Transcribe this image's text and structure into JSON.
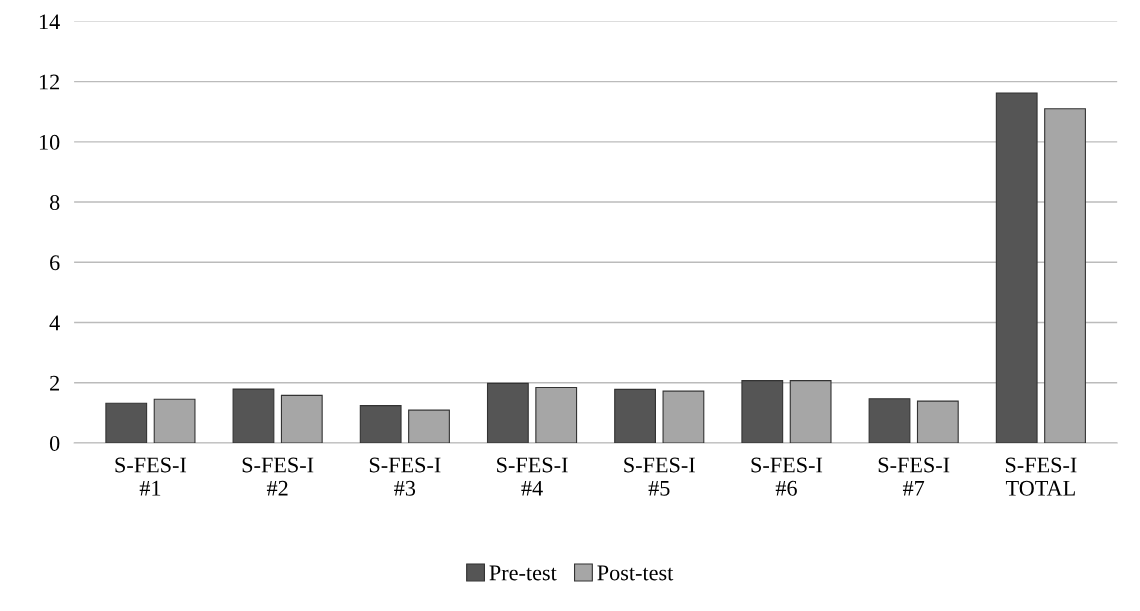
{
  "chart_data": {
    "type": "bar",
    "categories": [
      "S-FES-I\n#1",
      "S-FES-I\n#2",
      "S-FES-I\n#3",
      "S-FES-I\n#4",
      "S-FES-I\n#5",
      "S-FES-I\n#6",
      "S-FES-I\n#7",
      "S-FES-I\nTOTAL"
    ],
    "series": [
      {
        "name": "Pre-test",
        "color": "#555555",
        "values": [
          1.32,
          1.79,
          1.24,
          1.98,
          1.78,
          2.07,
          1.47,
          11.62
        ]
      },
      {
        "name": "Post-test",
        "color": "#a6a6a6",
        "values": [
          1.45,
          1.58,
          1.09,
          1.84,
          1.72,
          2.07,
          1.39,
          11.1
        ]
      }
    ],
    "ylim": [
      0,
      14
    ],
    "yticks": [
      0,
      2,
      4,
      6,
      8,
      10,
      12,
      14
    ],
    "grid": "y",
    "legend": "bottom"
  }
}
